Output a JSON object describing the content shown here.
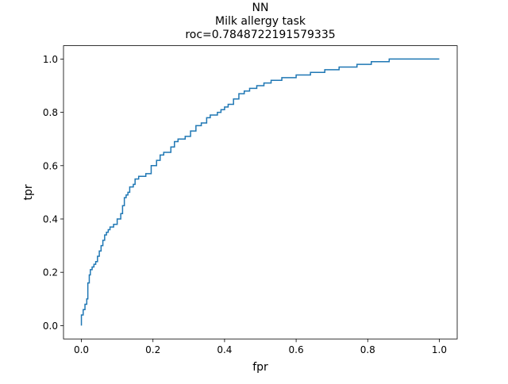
{
  "chart_data": {
    "type": "line",
    "title_lines": [
      "NN",
      "Milk allergy task",
      "roc=0.7848722191579335"
    ],
    "xlabel": "fpr",
    "ylabel": "tpr",
    "xlim": [
      -0.05,
      1.05
    ],
    "ylim": [
      -0.05,
      1.05
    ],
    "grid": false,
    "series_color": "#1f77b4",
    "xticks": [
      {
        "value": 0.0,
        "label": "0.0"
      },
      {
        "value": 0.2,
        "label": "0.2"
      },
      {
        "value": 0.4,
        "label": "0.4"
      },
      {
        "value": 0.6,
        "label": "0.6"
      },
      {
        "value": 0.8,
        "label": "0.8"
      },
      {
        "value": 1.0,
        "label": "1.0"
      }
    ],
    "yticks": [
      {
        "value": 0.0,
        "label": "0.0"
      },
      {
        "value": 0.2,
        "label": "0.2"
      },
      {
        "value": 0.4,
        "label": "0.4"
      },
      {
        "value": 0.6,
        "label": "0.6"
      },
      {
        "value": 0.8,
        "label": "0.8"
      },
      {
        "value": 1.0,
        "label": "1.0"
      }
    ],
    "series": [
      {
        "x": [
          0.0,
          0.0,
          0.005,
          0.005,
          0.01,
          0.01,
          0.015,
          0.015,
          0.018,
          0.018,
          0.022,
          0.022,
          0.025,
          0.025,
          0.03,
          0.03,
          0.035,
          0.035,
          0.04,
          0.04,
          0.045,
          0.045,
          0.05,
          0.05,
          0.055,
          0.055,
          0.06,
          0.06,
          0.065,
          0.065,
          0.07,
          0.07,
          0.075,
          0.075,
          0.08,
          0.08,
          0.085,
          0.085,
          0.09,
          0.09,
          0.1,
          0.1,
          0.11,
          0.11,
          0.115,
          0.115,
          0.12,
          0.12,
          0.125,
          0.125,
          0.13,
          0.13,
          0.135,
          0.135,
          0.145,
          0.145,
          0.15,
          0.15,
          0.16,
          0.16,
          0.18,
          0.18,
          0.195,
          0.195,
          0.21,
          0.21,
          0.22,
          0.22,
          0.23,
          0.23,
          0.25,
          0.25,
          0.26,
          0.26,
          0.27,
          0.27,
          0.28,
          0.28,
          0.29,
          0.29,
          0.305,
          0.305,
          0.32,
          0.32,
          0.335,
          0.335,
          0.35,
          0.35,
          0.36,
          0.36,
          0.38,
          0.38,
          0.39,
          0.39,
          0.4,
          0.4,
          0.41,
          0.41,
          0.425,
          0.425,
          0.44,
          0.44,
          0.455,
          0.455,
          0.47,
          0.47,
          0.49,
          0.49,
          0.51,
          0.51,
          0.53,
          0.53,
          0.56,
          0.56,
          0.6,
          0.6,
          0.64,
          0.64,
          0.68,
          0.68,
          0.72,
          0.72,
          0.77,
          0.77,
          0.81,
          0.81,
          0.86,
          0.86,
          1.0
        ],
        "y": [
          0.0,
          0.04,
          0.04,
          0.06,
          0.06,
          0.08,
          0.08,
          0.1,
          0.1,
          0.16,
          0.16,
          0.19,
          0.19,
          0.21,
          0.21,
          0.22,
          0.22,
          0.23,
          0.23,
          0.24,
          0.24,
          0.26,
          0.26,
          0.28,
          0.28,
          0.3,
          0.3,
          0.32,
          0.32,
          0.34,
          0.34,
          0.35,
          0.35,
          0.36,
          0.36,
          0.37,
          0.37,
          0.37,
          0.37,
          0.38,
          0.38,
          0.4,
          0.4,
          0.42,
          0.42,
          0.45,
          0.45,
          0.48,
          0.48,
          0.49,
          0.49,
          0.5,
          0.5,
          0.52,
          0.52,
          0.53,
          0.53,
          0.55,
          0.55,
          0.56,
          0.56,
          0.57,
          0.57,
          0.6,
          0.6,
          0.62,
          0.62,
          0.64,
          0.64,
          0.65,
          0.65,
          0.67,
          0.67,
          0.69,
          0.69,
          0.7,
          0.7,
          0.7,
          0.7,
          0.71,
          0.71,
          0.73,
          0.73,
          0.75,
          0.75,
          0.76,
          0.76,
          0.78,
          0.78,
          0.79,
          0.79,
          0.8,
          0.8,
          0.81,
          0.81,
          0.82,
          0.82,
          0.83,
          0.83,
          0.85,
          0.85,
          0.87,
          0.87,
          0.88,
          0.88,
          0.89,
          0.89,
          0.9,
          0.9,
          0.91,
          0.91,
          0.92,
          0.92,
          0.93,
          0.93,
          0.94,
          0.94,
          0.95,
          0.95,
          0.96,
          0.96,
          0.97,
          0.97,
          0.98,
          0.98,
          0.99,
          0.99,
          1.0,
          1.0
        ]
      }
    ]
  }
}
